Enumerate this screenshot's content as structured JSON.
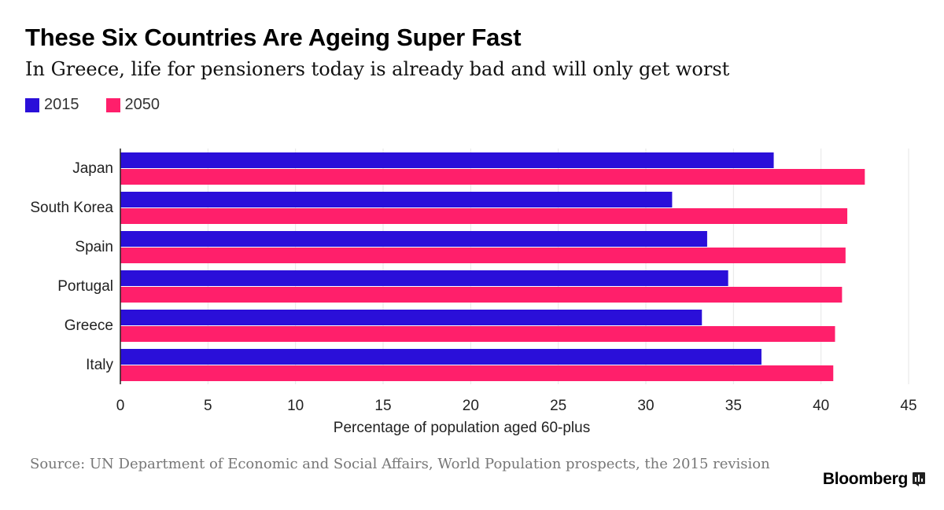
{
  "header": {
    "title": "These Six Countries Are Ageing Super Fast",
    "subtitle": "In Greece, life for pensioners today is already bad and will only get worst"
  },
  "legend": [
    {
      "label": "2015",
      "color": "#2a0fd9"
    },
    {
      "label": "2050",
      "color": "#ff1f6b"
    }
  ],
  "footer": {
    "source": "Source: UN Department of Economic and Social Affairs, World Population prospects, the 2015 revision",
    "brand": "Bloomberg",
    "brand_icon": "bar-chart-icon"
  },
  "chart_data": {
    "type": "bar",
    "orientation": "horizontal",
    "categories": [
      "Japan",
      "South Korea",
      "Spain",
      "Portugal",
      "Greece",
      "Italy"
    ],
    "series": [
      {
        "name": "2015",
        "color": "#2a0fd9",
        "values": [
          37.3,
          31.5,
          33.5,
          34.7,
          33.2,
          36.6
        ]
      },
      {
        "name": "2050",
        "color": "#ff1f6b",
        "values": [
          42.5,
          41.5,
          41.4,
          41.2,
          40.8,
          40.7
        ]
      }
    ],
    "xlabel": "Percentage of population aged 60-plus",
    "xlim": [
      0,
      45
    ],
    "xticks": [
      0,
      5,
      10,
      15,
      20,
      25,
      30,
      35,
      40,
      45
    ],
    "grid": true,
    "legend_position": "top-left"
  }
}
